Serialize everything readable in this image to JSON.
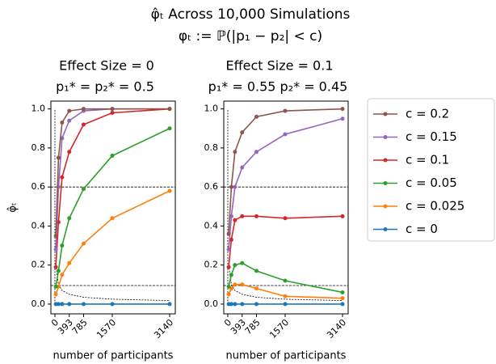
{
  "title": "φ̂ₜ Across 10,000 Simulations",
  "subtitle": "φₜ := ℙ(|p₁ − p₂| < c)",
  "legend": {
    "entries": [
      {
        "name": "c = 0.2",
        "color": "#8c564b"
      },
      {
        "name": "c = 0.15",
        "color": "#9467bd"
      },
      {
        "name": "c = 0.1",
        "color": "#d62728"
      },
      {
        "name": "c = 0.05",
        "color": "#2ca02c"
      },
      {
        "name": "c = 0.025",
        "color": "#ff7f0e"
      },
      {
        "name": "c = 0",
        "color": "#1f77b4"
      }
    ]
  },
  "chart_data": [
    {
      "type": "line",
      "title": "Effect Size = 0",
      "subtitle": "p₁* = p₂* = 0.5",
      "x_label": "number of participants",
      "y_label": "φ̂ₜ",
      "x": [
        25,
        98,
        196,
        393,
        785,
        1570,
        3140
      ],
      "series": [
        {
          "values": [
            0.35,
            0.75,
            0.93,
            0.99,
            1.0,
            1.0,
            1.0
          ]
        },
        {
          "values": [
            0.28,
            0.6,
            0.85,
            0.94,
            0.99,
            1.0,
            1.0
          ]
        },
        {
          "values": [
            0.19,
            0.42,
            0.65,
            0.78,
            0.92,
            0.98,
            1.0
          ]
        },
        {
          "values": [
            0.09,
            0.17,
            0.3,
            0.44,
            0.59,
            0.76,
            0.9
          ]
        },
        {
          "values": [
            0.05,
            0.09,
            0.15,
            0.21,
            0.31,
            0.44,
            0.58
          ]
        },
        {
          "values": [
            0,
            0,
            0,
            0,
            0,
            0,
            0
          ]
        }
      ],
      "reference_hlines": [
        0.6,
        0.095
      ],
      "reference_vline": 0,
      "reference_curve": {
        "x": [
          25,
          98,
          196,
          393,
          785,
          1570,
          3140
        ],
        "values": [
          0.2,
          0.1,
          0.07,
          0.05,
          0.035,
          0.025,
          0.018
        ]
      },
      "xlim": [
        -110,
        3295
      ],
      "xticks": [
        0,
        393,
        785,
        1570,
        3140
      ],
      "ylim": [
        -0.05,
        1.04
      ],
      "yticks": [
        {
          "value": 0,
          "label": "0.0"
        },
        0.2,
        0.4,
        0.6,
        0.8,
        {
          "value": 1,
          "label": "1.0"
        }
      ]
    },
    {
      "type": "line",
      "title": "Effect Size = 0.1",
      "subtitle": "p₁* = 0.55 p₂* = 0.45",
      "x_label": "number of participants",
      "x": [
        25,
        98,
        196,
        393,
        785,
        1570,
        3140
      ],
      "series": [
        {
          "values": [
            0.36,
            0.6,
            0.78,
            0.88,
            0.96,
            0.99,
            1.0
          ]
        },
        {
          "values": [
            0.28,
            0.45,
            0.6,
            0.7,
            0.78,
            0.87,
            0.95
          ]
        },
        {
          "values": [
            0.19,
            0.33,
            0.43,
            0.45,
            0.45,
            0.44,
            0.45
          ]
        },
        {
          "values": [
            0.09,
            0.15,
            0.2,
            0.21,
            0.17,
            0.12,
            0.06
          ]
        },
        {
          "values": [
            0.05,
            0.08,
            0.1,
            0.1,
            0.08,
            0.04,
            0.03
          ]
        },
        {
          "values": [
            0,
            0,
            0,
            0,
            0,
            0,
            0
          ]
        }
      ],
      "reference_hlines": [
        0.6,
        0.095
      ],
      "reference_vline": 0,
      "reference_curve": {
        "x": [
          25,
          98,
          196,
          393,
          785,
          1570,
          3140
        ],
        "values": [
          0.2,
          0.1,
          0.07,
          0.05,
          0.035,
          0.025,
          0.018
        ]
      },
      "xlim": [
        -110,
        3295
      ],
      "xticks": [
        0,
        393,
        785,
        1570,
        3140
      ],
      "ylim": [
        -0.05,
        1.04
      ],
      "yticks": [
        {
          "value": 0,
          "label": "0.0"
        },
        0.2,
        0.4,
        0.6,
        0.8,
        {
          "value": 1,
          "label": "1.0"
        }
      ]
    }
  ]
}
